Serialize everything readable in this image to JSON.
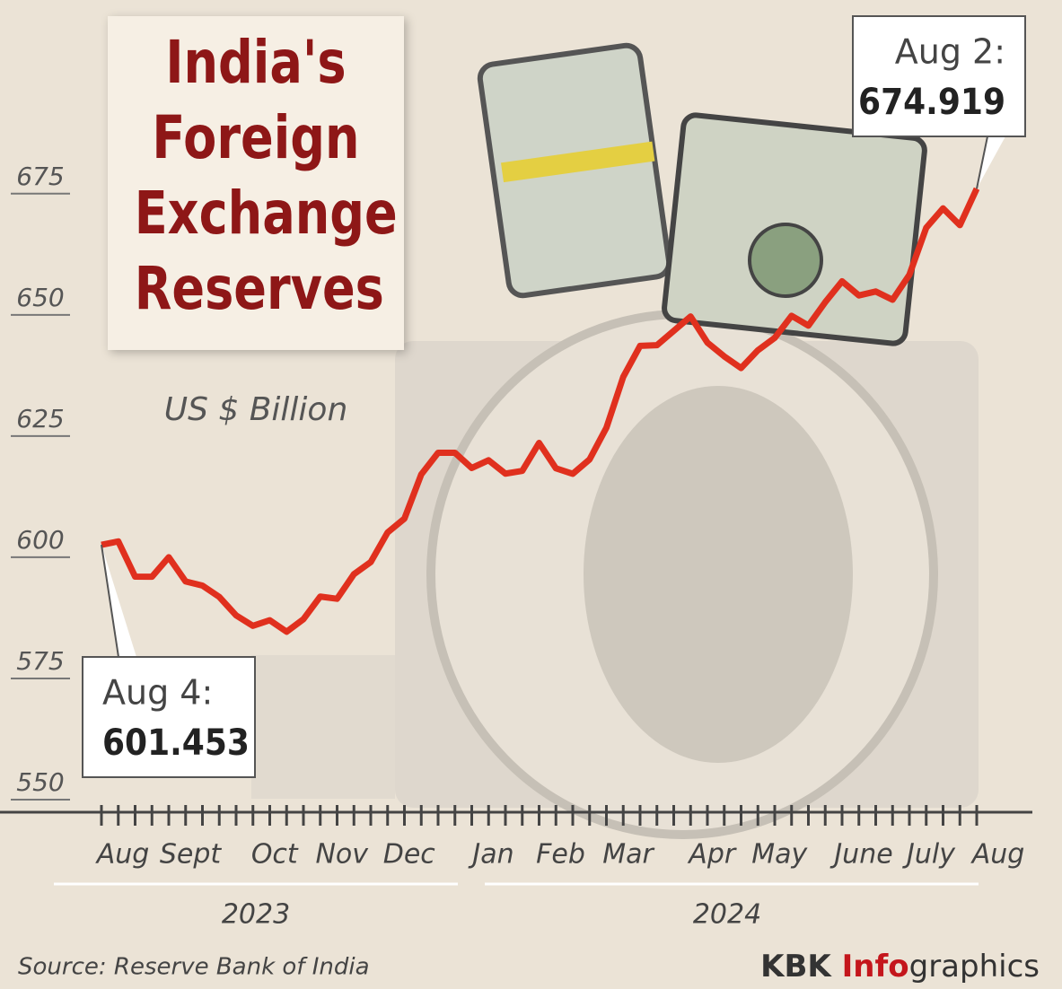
{
  "chart_data": {
    "type": "line",
    "title": "India's Foreign Exchange Reserves",
    "subtitle": "US $ Billion",
    "source": "Source: Reserve Bank of India",
    "brand": {
      "name": "KBK",
      "highlight": "Info",
      "rest": "graphics"
    },
    "years": [
      "2023",
      "2024"
    ],
    "categories": [
      "Aug",
      null,
      null,
      null,
      "Sept",
      null,
      null,
      null,
      null,
      "Oct",
      null,
      null,
      null,
      "Nov",
      null,
      null,
      null,
      "Dec",
      null,
      null,
      null,
      null,
      "Jan",
      null,
      null,
      null,
      "Feb",
      null,
      null,
      null,
      "Mar",
      null,
      null,
      null,
      null,
      "Apr",
      null,
      null,
      null,
      "May",
      null,
      null,
      null,
      null,
      "June",
      null,
      null,
      null,
      "July",
      null,
      null,
      null,
      "Aug"
    ],
    "series": [
      {
        "name": "Reserves",
        "color": "#e0301e",
        "values": [
          601.453,
          602.16,
          594.89,
          594.86,
          598.9,
          593.9,
          593.04,
          590.7,
          586.9,
          584.74,
          585.9,
          583.53,
          586.11,
          590.78,
          590.32,
          595.4,
          597.9,
          604.0,
          606.86,
          615.97,
          620.44,
          620.44,
          617.3,
          618.9,
          616.14,
          616.7,
          622.47,
          617.23,
          616.1,
          619.07,
          625.6,
          636.1,
          642.49,
          642.63,
          645.58,
          648.56,
          643.16,
          640.33,
          637.92,
          641.59,
          644.15,
          648.7,
          646.67,
          651.5,
          655.82,
          652.9,
          653.71,
          652.0,
          657.16,
          666.85,
          670.86,
          667.39,
          674.919
        ]
      }
    ],
    "annotations": [
      {
        "label": "Aug 4:",
        "index": 0,
        "value": 601.453
      },
      {
        "label": "Aug 2:",
        "index": 52,
        "value": 674.919
      }
    ],
    "ylim": [
      545,
      682
    ],
    "yticks": [
      550,
      575,
      600,
      625,
      650,
      675
    ],
    "grid": false
  }
}
